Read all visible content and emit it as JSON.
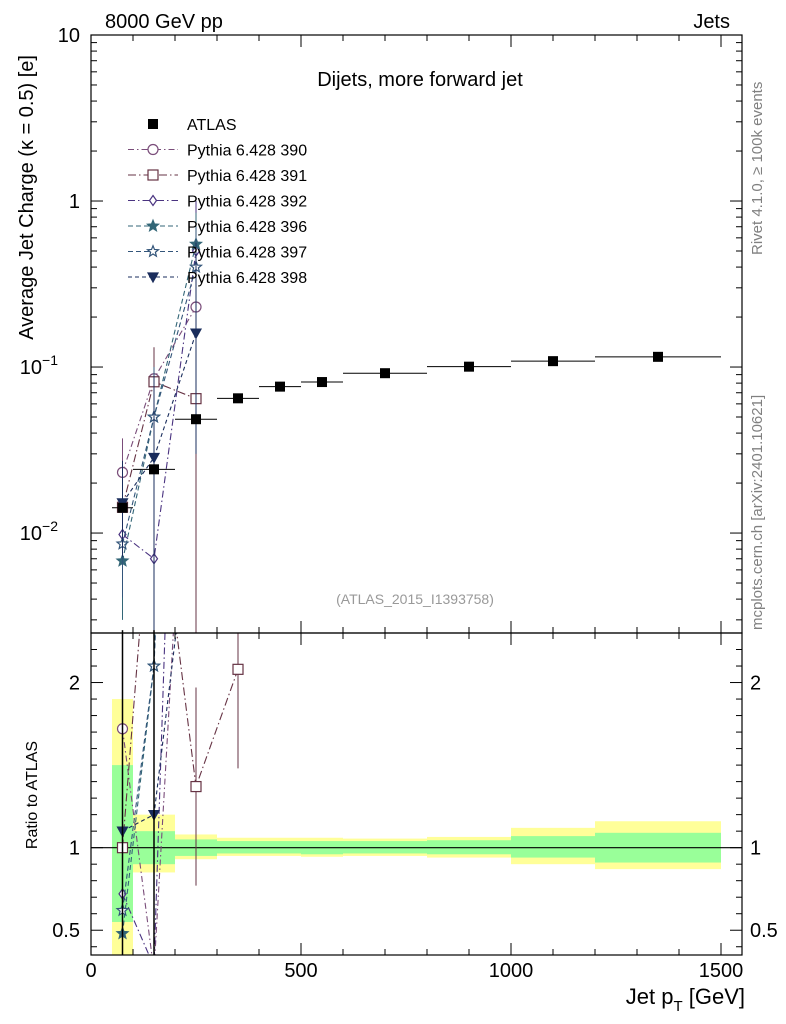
{
  "header": {
    "left": "8000 GeV pp",
    "right": "Jets"
  },
  "side_labels": {
    "rivet": "Rivet 4.1.0, ≥ 100k events",
    "mcplots": "mcplots.cern.ch [arXiv:2401.10621]"
  },
  "chart_data": {
    "type": "line",
    "title": "Dijets, more forward jet",
    "watermark": "(ATLAS_2015_I1393758)",
    "xlabel": "Jet p_T [GeV]",
    "xlabel_main": "Jet p",
    "xlabel_sub": "T",
    "xlabel_unit": " [GeV]",
    "ylabel": "Average Jet Charge (κ = 0.5) [e]",
    "ratio_ylabel": "Ratio to ATLAS",
    "xlim": [
      0,
      1550
    ],
    "ylim": [
      0.0025,
      10
    ],
    "yscale": "log",
    "ratio_ylim": [
      0.35,
      2.3
    ],
    "x_ticks": [
      "0",
      "500",
      "1000",
      "1500"
    ],
    "x_tick_values": [
      0,
      500,
      1000,
      1500
    ],
    "y_ticks": [
      {
        "value": 10,
        "label": "10"
      },
      {
        "value": 1,
        "label": "1"
      },
      {
        "value": 0.1,
        "label": "10",
        "sup": "−1"
      },
      {
        "value": 0.01,
        "label": "10",
        "sup": "−2"
      }
    ],
    "ratio_y_ticks": [
      {
        "value": 2,
        "label": "2"
      },
      {
        "value": 1,
        "label": "1"
      },
      {
        "value": 0.5,
        "label": "0.5"
      }
    ],
    "legend_position": "top-left",
    "atlas": {
      "name": "ATLAS",
      "color": "#000000",
      "x": [
        75,
        150,
        250,
        350,
        450,
        550,
        700,
        900,
        1100,
        1350
      ],
      "xerr_low": [
        25,
        50,
        50,
        50,
        50,
        50,
        100,
        100,
        100,
        150
      ],
      "xerr_high": [
        25,
        50,
        50,
        50,
        50,
        50,
        100,
        100,
        100,
        150
      ],
      "y": [
        0.0142,
        0.0242,
        0.0485,
        0.0648,
        0.0762,
        0.0812,
        0.0918,
        0.1005,
        0.1085,
        0.1152
      ]
    },
    "ratio_bands": {
      "x_edges": [
        50,
        100,
        200,
        300,
        400,
        500,
        600,
        800,
        1000,
        1200,
        1500
      ],
      "stat_low": [
        0.55,
        0.9,
        0.95,
        0.965,
        0.965,
        0.96,
        0.965,
        0.96,
        0.94,
        0.91
      ],
      "stat_high": [
        1.5,
        1.1,
        1.05,
        1.04,
        1.04,
        1.04,
        1.04,
        1.045,
        1.07,
        1.09
      ],
      "total_low": [
        0.35,
        0.85,
        0.93,
        0.95,
        0.95,
        0.945,
        0.95,
        0.94,
        0.9,
        0.87
      ],
      "total_high": [
        1.9,
        1.2,
        1.08,
        1.06,
        1.06,
        1.06,
        1.055,
        1.065,
        1.12,
        1.16
      ],
      "stat_color": "#99ff99",
      "total_color": "#ffff99"
    },
    "series": [
      {
        "name": "Pythia 6.428 390",
        "color": "#7a4d7a",
        "marker": "circle-open",
        "dash": "6,3,1.5,3",
        "x": [
          75,
          150,
          250
        ],
        "y": [
          0.0232,
          0.085,
          0.23
        ],
        "err_low": [
          0.0082,
          0.035,
          0.2
        ],
        "err_high": [
          0.014,
          0.045,
          0.5
        ],
        "ratio": [
          1.72,
          0.25,
          4.7
        ],
        "lines_beyond": []
      },
      {
        "name": "Pythia 6.428 391",
        "color": "#663344",
        "marker": "square-open",
        "dash": "8,3,1.5,3",
        "x": [
          75,
          150,
          250,
          350
        ],
        "y": [
          0.0143,
          0.0815,
          0.0645,
          null
        ],
        "err_low": [
          0.006,
          0.02,
          0.062,
          null
        ],
        "err_high": [
          0.007,
          0.05,
          0.5,
          null
        ],
        "ratio": [
          1.0,
          3.4,
          1.37,
          2.08
        ]
      },
      {
        "name": "Pythia 6.428 392",
        "color": "#4a3380",
        "marker": "diamond-open",
        "dash": "7,3,1.5,3",
        "x": [
          75,
          150,
          250
        ],
        "y": [
          0.0098,
          0.007,
          0.5
        ],
        "err_low": [
          0.004,
          0.006,
          0.45
        ],
        "err_high": [
          0.006,
          0.03,
          0.5
        ],
        "ratio": [
          0.72,
          0.28,
          8.0
        ]
      },
      {
        "name": "Pythia 6.428 396",
        "color": "#336677",
        "marker": "star-filled",
        "dash": "5,3",
        "x": [
          75,
          150,
          250
        ],
        "y": [
          0.0068,
          0.05,
          0.55
        ],
        "err_low": [
          0.0038,
          0.04,
          0.4
        ],
        "err_high": [
          0.006,
          0.05,
          0.3
        ],
        "ratio": [
          0.48,
          2.1,
          10.0
        ]
      },
      {
        "name": "Pythia 6.428 397",
        "color": "#33557a",
        "marker": "star-open",
        "dash": "5,3",
        "x": [
          75,
          150,
          250
        ],
        "y": [
          0.0086,
          0.05,
          0.4
        ],
        "err_low": [
          0.0045,
          0.04,
          0.35
        ],
        "err_high": [
          0.006,
          0.05,
          0.3
        ],
        "ratio": [
          0.62,
          2.1,
          8.0
        ]
      },
      {
        "name": "Pythia 6.428 398",
        "color": "#1a2d5c",
        "marker": "triangle-down-filled",
        "dash": "4,3",
        "x": [
          75,
          150,
          250
        ],
        "y": [
          0.0152,
          0.0285,
          0.16
        ],
        "err_low": [
          0.008,
          0.026,
          0.13
        ],
        "err_high": [
          0.012,
          0.06,
          0.4
        ],
        "ratio": [
          1.1,
          1.2,
          3.3
        ]
      }
    ]
  }
}
